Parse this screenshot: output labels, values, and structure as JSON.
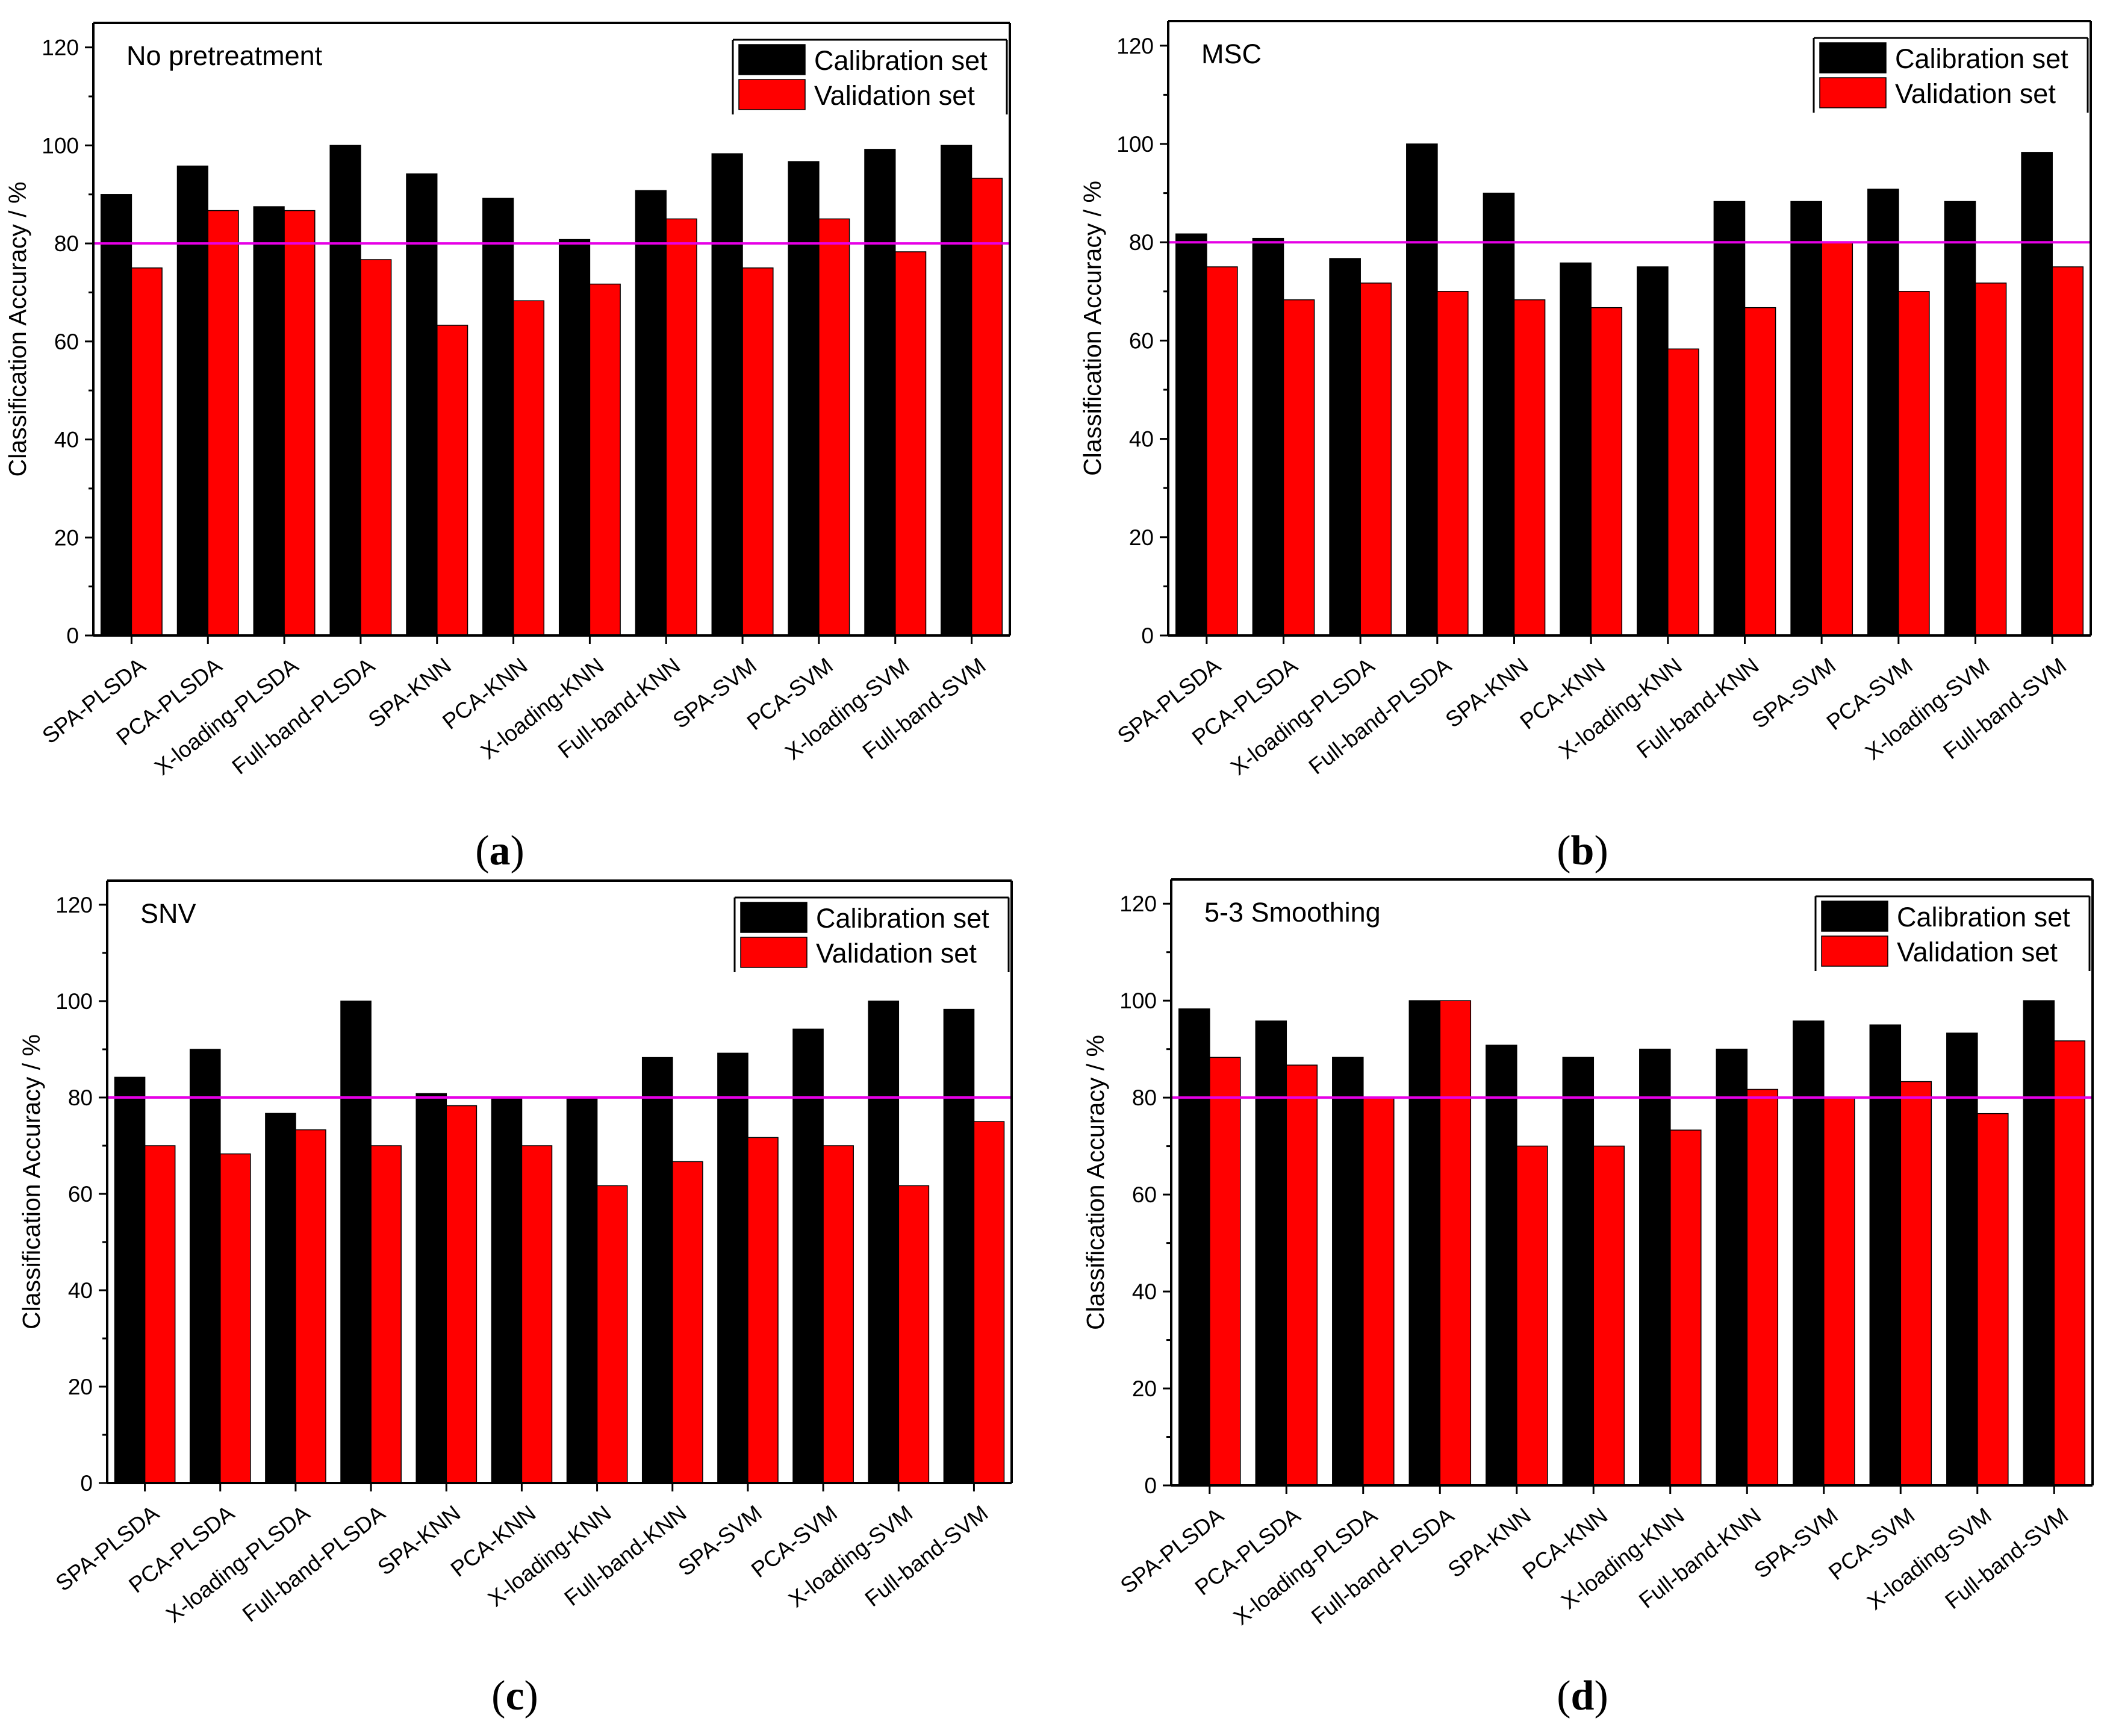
{
  "colors": {
    "calibration": "#000000",
    "validation": "#ff0000",
    "reference_line": "#e600e6",
    "axis": "#000000"
  },
  "chart_data": [
    {
      "panel": "(a)",
      "caption": {
        "open": "(",
        "letter": "a",
        "close": ")"
      },
      "type": "bar",
      "title": "No pretreatment",
      "xlabel": "",
      "ylabel": "Classification Accuracy / %",
      "ylim": [
        0,
        125
      ],
      "yticks": [
        "0",
        "20",
        "40",
        "60",
        "80",
        "100",
        "120"
      ],
      "reference_line": 80,
      "legend": [
        "Calibration set",
        "Validation set"
      ],
      "legend_position": "top-right",
      "categories": [
        "SPA-PLSDA",
        "PCA-PLSDA",
        "X-loading-PLSDA",
        "Full-band-PLSDA",
        "SPA-KNN",
        "PCA-KNN",
        "X-loading-KNN",
        "Full-band-KNN",
        "SPA-SVM",
        "PCA-SVM",
        "X-loading-SVM",
        "Full-band-SVM"
      ],
      "series": [
        {
          "name": "Calibration set",
          "values": [
            90,
            95.8,
            87.5,
            100,
            94.2,
            89.2,
            80.8,
            90.8,
            98.3,
            96.7,
            99.2,
            100
          ]
        },
        {
          "name": "Validation set",
          "values": [
            75,
            86.7,
            86.7,
            76.7,
            63.3,
            68.3,
            71.7,
            85,
            75,
            85,
            78.3,
            93.3
          ]
        }
      ]
    },
    {
      "panel": "(b)",
      "caption": {
        "open": "(",
        "letter": "b",
        "close": ")"
      },
      "type": "bar",
      "title": "MSC",
      "xlabel": "",
      "ylabel": "Classification Accuracy / %",
      "ylim": [
        0,
        125
      ],
      "yticks": [
        "0",
        "20",
        "40",
        "60",
        "80",
        "100",
        "120"
      ],
      "reference_line": 80,
      "legend": [
        "Calibration set",
        "Validation set"
      ],
      "legend_position": "top-right",
      "categories": [
        "SPA-PLSDA",
        "PCA-PLSDA",
        "X-loading-PLSDA",
        "Full-band-PLSDA",
        "SPA-KNN",
        "PCA-KNN",
        "X-loading-KNN",
        "Full-band-KNN",
        "SPA-SVM",
        "PCA-SVM",
        "X-loading-SVM",
        "Full-band-SVM"
      ],
      "series": [
        {
          "name": "Calibration set",
          "values": [
            81.7,
            80.8,
            76.7,
            100,
            90,
            75.8,
            75,
            88.3,
            88.3,
            90.8,
            88.3,
            98.3
          ]
        },
        {
          "name": "Validation set",
          "values": [
            75,
            68.3,
            71.7,
            70,
            68.3,
            66.7,
            58.3,
            66.7,
            80,
            70,
            71.7,
            75
          ]
        }
      ]
    },
    {
      "panel": "(c)",
      "caption": {
        "open": "(",
        "letter": "c",
        "close": ")"
      },
      "type": "bar",
      "title": "SNV",
      "xlabel": "",
      "ylabel": "Classification Accuracy / %",
      "ylim": [
        0,
        125
      ],
      "yticks": [
        "0",
        "20",
        "40",
        "60",
        "80",
        "100",
        "120"
      ],
      "reference_line": 80,
      "legend": [
        "Calibration set",
        "Validation set"
      ],
      "legend_position": "top-right",
      "categories": [
        "SPA-PLSDA",
        "PCA-PLSDA",
        "X-loading-PLSDA",
        "Full-band-PLSDA",
        "SPA-KNN",
        "PCA-KNN",
        "X-loading-KNN",
        "Full-band-KNN",
        "SPA-SVM",
        "PCA-SVM",
        "X-loading-SVM",
        "Full-band-SVM"
      ],
      "series": [
        {
          "name": "Calibration set",
          "values": [
            84.2,
            90,
            76.7,
            100,
            80.8,
            80,
            80,
            88.3,
            89.2,
            94.2,
            100,
            98.3
          ]
        },
        {
          "name": "Validation set",
          "values": [
            70,
            68.3,
            73.3,
            70,
            78.3,
            70,
            61.7,
            66.7,
            71.7,
            70,
            61.7,
            75
          ]
        }
      ]
    },
    {
      "panel": "(d)",
      "caption": {
        "open": "(",
        "letter": "d",
        "close": ")"
      },
      "type": "bar",
      "title": "5-3 Smoothing",
      "xlabel": "",
      "ylabel": "Classification Accuracy / %",
      "ylim": [
        0,
        125
      ],
      "yticks": [
        "0",
        "20",
        "40",
        "60",
        "80",
        "100",
        "120"
      ],
      "reference_line": 80,
      "legend": [
        "Calibration set",
        "Validation set"
      ],
      "legend_position": "top-right",
      "categories": [
        "SPA-PLSDA",
        "PCA-PLSDA",
        "X-loading-PLSDA",
        "Full-band-PLSDA",
        "SPA-KNN",
        "PCA-KNN",
        "X-loading-KNN",
        "Full-band-KNN",
        "SPA-SVM",
        "PCA-SVM",
        "X-loading-SVM",
        "Full-band-SVM"
      ],
      "series": [
        {
          "name": "Calibration set",
          "values": [
            98.3,
            95.8,
            88.3,
            100,
            90.8,
            88.3,
            90,
            90,
            95.8,
            95,
            93.3,
            100
          ]
        },
        {
          "name": "Validation set",
          "values": [
            88.3,
            86.7,
            80,
            100,
            70,
            70,
            73.3,
            81.7,
            80,
            83.3,
            76.7,
            91.7
          ]
        }
      ]
    }
  ]
}
